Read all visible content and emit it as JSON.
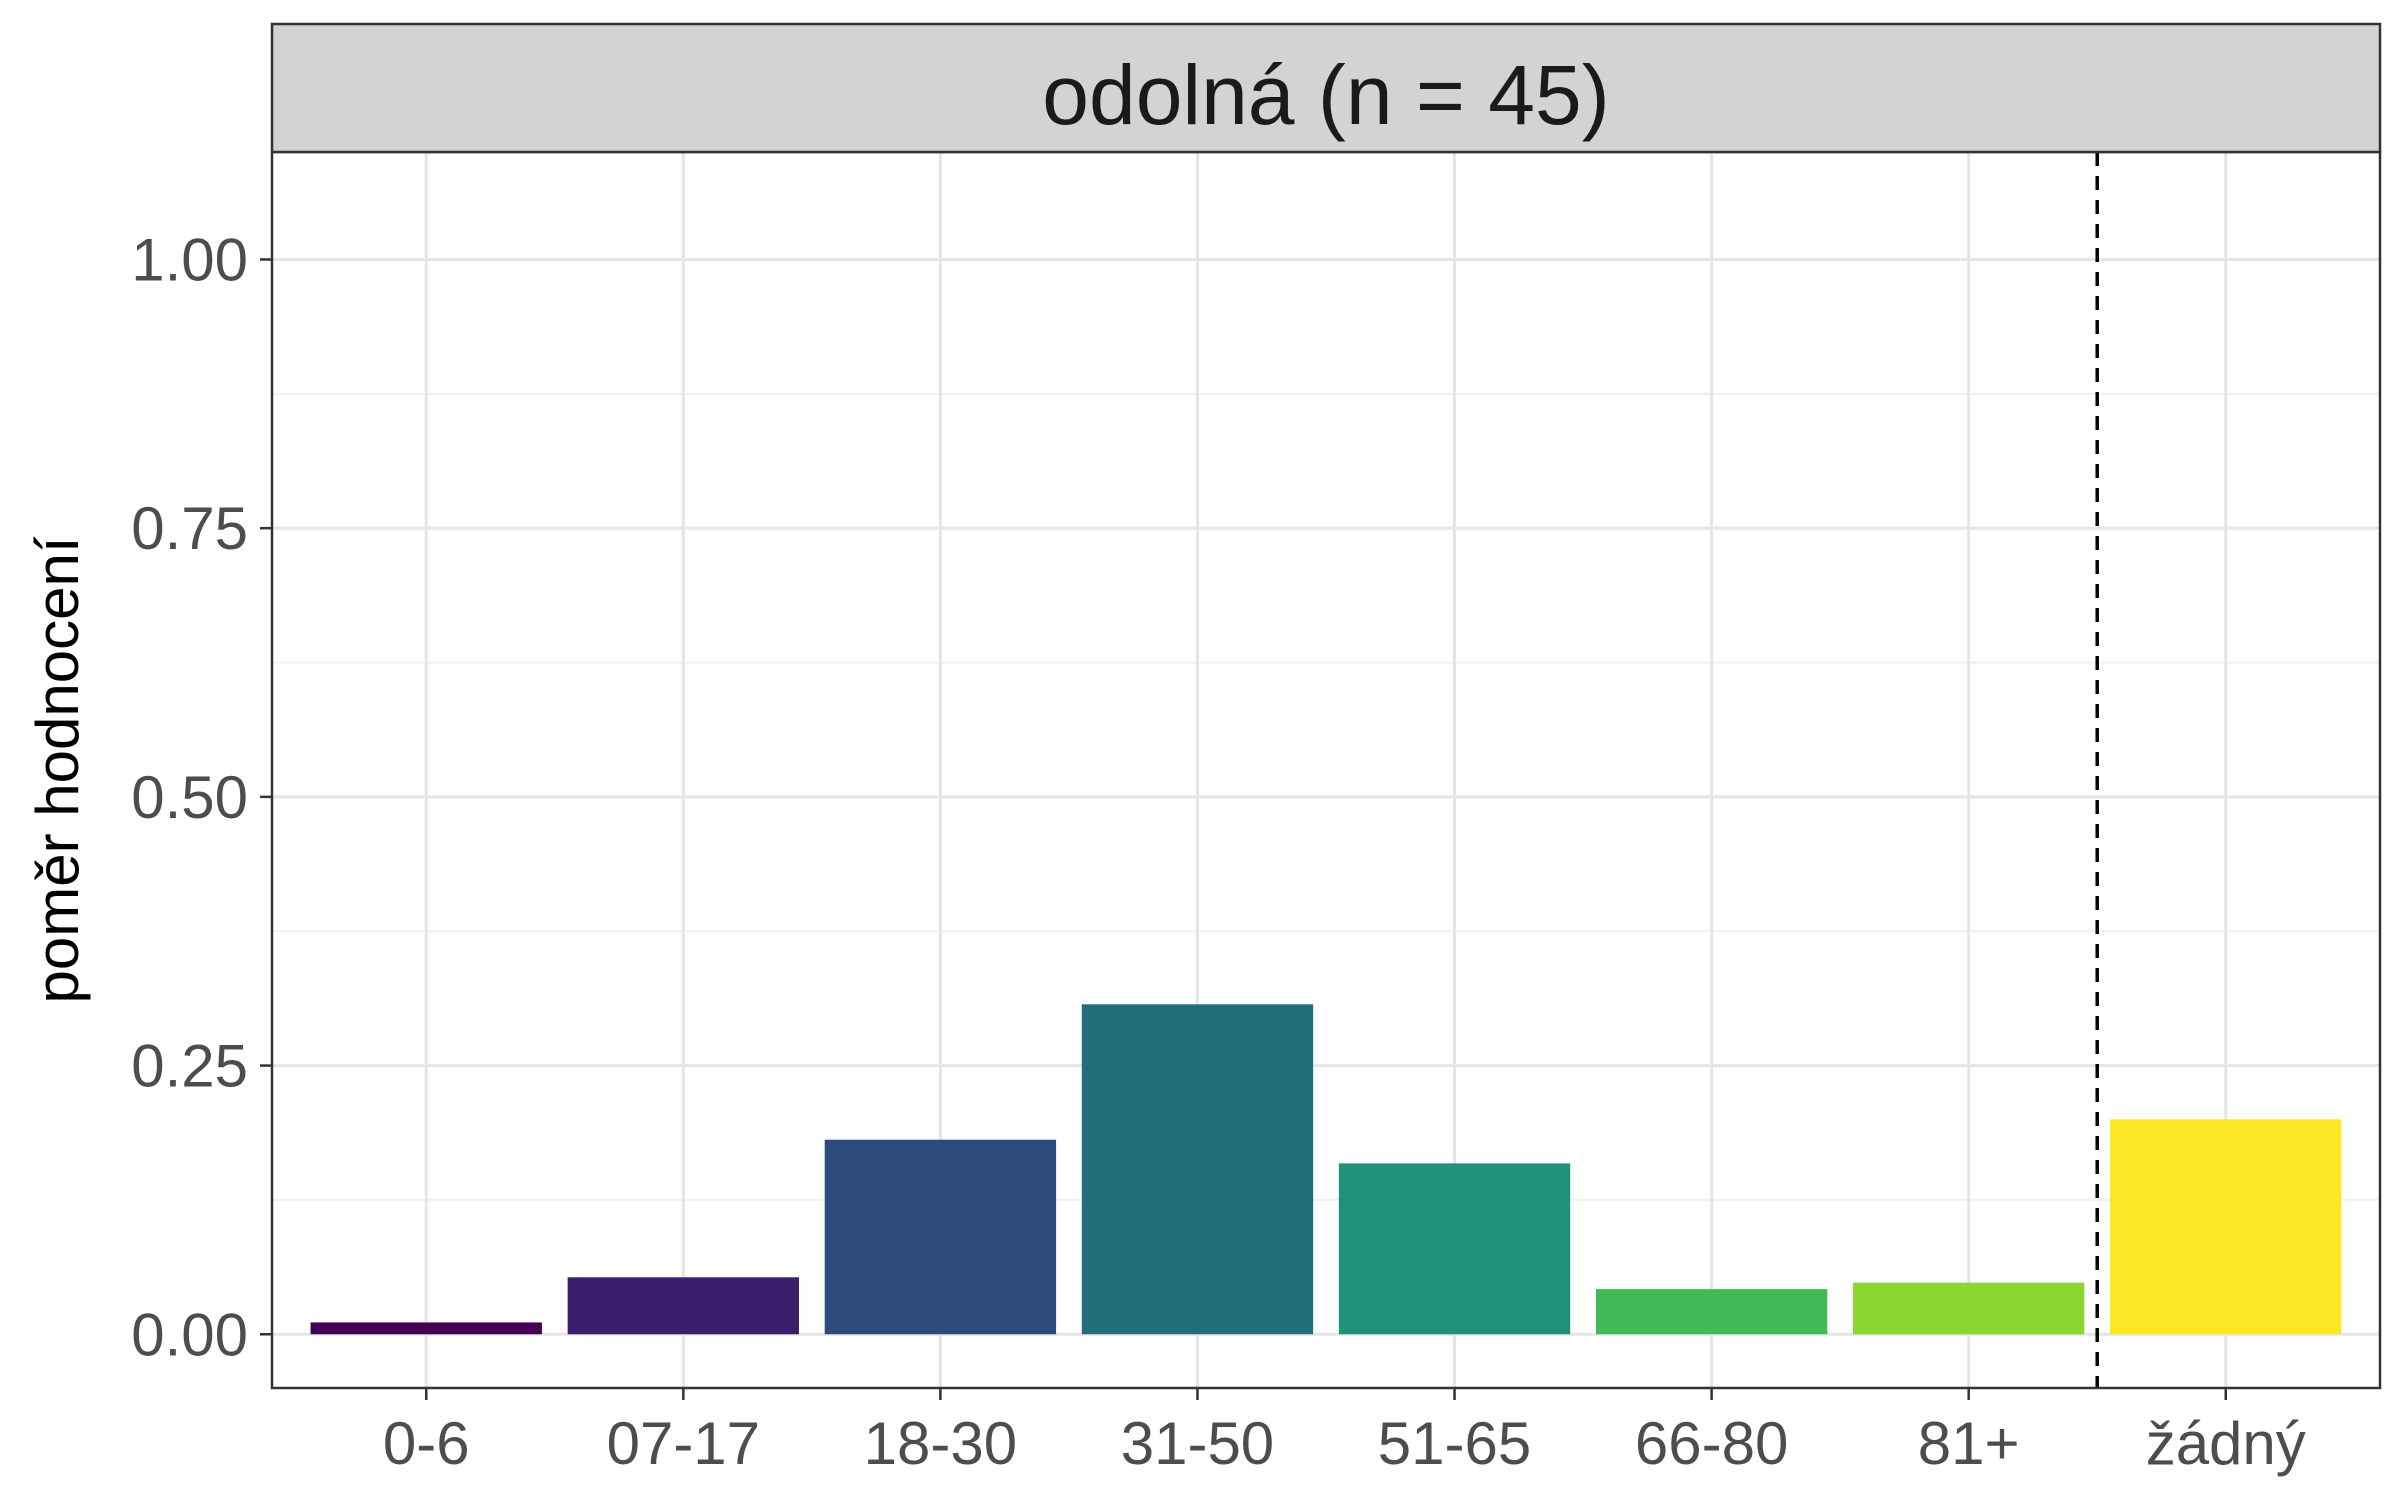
{
  "chart_data": {
    "type": "bar",
    "title": "odolná (n = 45)",
    "xlabel": "",
    "ylabel": "poměr hodnocení",
    "categories": [
      "0-6",
      "07-17",
      "18-30",
      "31-50",
      "51-65",
      "66-80",
      "81+",
      "žádný"
    ],
    "values": [
      0.011,
      0.053,
      0.181,
      0.307,
      0.159,
      0.042,
      0.048,
      0.2
    ],
    "colors": [
      "#440154",
      "#3b1f6b",
      "#2c4a7b",
      "#216e7b",
      "#21917a",
      "#40ba54",
      "#8cd631",
      "#fde725"
    ],
    "ylim": [
      -0.05,
      1.1
    ],
    "yticks": [
      0.0,
      0.25,
      0.5,
      0.75,
      1.0
    ],
    "ytick_labels": [
      "0.00",
      "0.25",
      "0.50",
      "0.75",
      "1.00"
    ],
    "grid": true,
    "vline_between": [
      "81+",
      "žádný"
    ],
    "vline_style": "dashed"
  }
}
